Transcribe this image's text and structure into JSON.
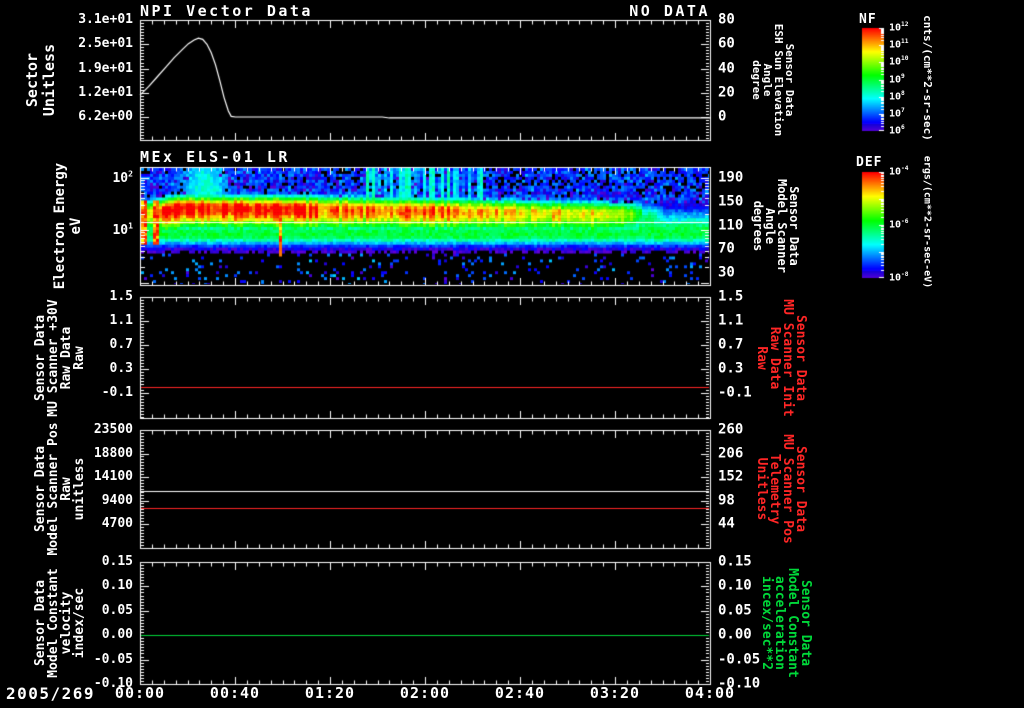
{
  "date_label": "2005/269",
  "time_ticks": [
    "00:00",
    "00:40",
    "01:20",
    "02:00",
    "02:40",
    "03:20",
    "04:00"
  ],
  "colors": {
    "background": "#000000",
    "axis": "#ffffff",
    "red": "#ff2626",
    "green": "#00d93a"
  },
  "panels": [
    {
      "id": "npi-vector",
      "title": "NPI Vector Data",
      "overlay": "NO DATA",
      "left_label_lines": [
        "Sector",
        "Unitless"
      ],
      "left_tick_labels": [
        "3.1e+01",
        "2.5e+01",
        "1.9e+01",
        "1.2e+01",
        "6.2e+00"
      ],
      "right_tick_labels": [
        "80",
        "60",
        "40",
        "20",
        "0"
      ],
      "right_label_lines": [
        "Sensor Data",
        "ESH Sun Elevation",
        "Angle",
        "degree"
      ],
      "right_label_color": "#ffffff"
    },
    {
      "id": "els-spectrogram",
      "title": "MEx ELS-01 LR",
      "left_label_lines": [
        "Electron Energy",
        "eV"
      ],
      "left_tick_labels": [
        "10^2",
        "10^1"
      ],
      "right_tick_labels": [
        "190",
        "150",
        "110",
        "70",
        "30"
      ],
      "right_label_lines": [
        "Sensor Data",
        "Model Scanner",
        "Angle",
        "degrees"
      ],
      "right_label_color": "#ffffff"
    },
    {
      "id": "mu-scanner-raw",
      "left_label_lines": [
        "Sensor Data",
        "MU Scanner +30V",
        "Raw Data",
        "Raw"
      ],
      "left_tick_labels": [
        "1.5",
        "1.1",
        "0.7",
        "0.3",
        "-0.1"
      ],
      "right_tick_labels": [
        "1.5",
        "1.1",
        "0.7",
        "0.3",
        "-0.1"
      ],
      "right_label_lines": [
        "Sensor Data",
        "MU Scanner Init",
        "Raw Data",
        "Raw"
      ],
      "right_label_color": "#ff2626"
    },
    {
      "id": "scanner-pos",
      "left_label_lines": [
        "Sensor Data",
        "Model Scanner Pos",
        "Raw",
        "unitless"
      ],
      "left_tick_labels": [
        "23500",
        "18800",
        "14100",
        "9400",
        "4700"
      ],
      "right_tick_labels": [
        "260",
        "206",
        "152",
        "98",
        "44"
      ],
      "right_label_lines": [
        "Sensor Data",
        "MU Scanner Pos",
        "Telemetry",
        "Unitless"
      ],
      "right_label_color": "#ff2626"
    },
    {
      "id": "model-constant",
      "left_label_lines": [
        "Sensor Data",
        "Model Constant",
        "velocity",
        "index/sec"
      ],
      "left_tick_labels": [
        "0.15",
        "0.10",
        "0.05",
        "0.00",
        "-0.05",
        "-0.10"
      ],
      "right_tick_labels": [
        "0.15",
        "0.10",
        "0.05",
        "0.00",
        "-0.05",
        "-0.10"
      ],
      "right_label_lines": [
        "Sensor Data",
        "Model Constant",
        "acceleration",
        "incex/sec**2"
      ],
      "right_label_color": "#00d93a"
    }
  ],
  "colorbars": [
    {
      "title": "NF",
      "tick_labels": [
        "10^12",
        "10^11",
        "10^10",
        "10^9",
        "10^8",
        "10^7",
        "10^6"
      ],
      "unit": "cnts/(cm**2-sr-sec)"
    },
    {
      "title": "DEF",
      "tick_labels": [
        "10^-4",
        "10^-6",
        "10^-8"
      ],
      "unit": "ergs/(cm**2-sr-sec-eV)"
    }
  ],
  "chart_data": [
    {
      "type": "line",
      "panel": "NPI Vector Data",
      "status": "NO DATA",
      "x_range_hours": [
        0,
        4
      ],
      "y_left_axis": {
        "label": "Sector Unitless",
        "ticks": [
          31,
          25,
          19,
          12,
          6.2
        ]
      },
      "y_right_axis": {
        "label": "Sensor Data ESH Sun Elevation Angle degree",
        "ticks": [
          80,
          60,
          40,
          20,
          0
        ]
      },
      "series": [
        {
          "name": "ESH Sun Elevation Angle (deg)",
          "color": "#ffffff",
          "points": [
            [
              0,
              18
            ],
            [
              0.06,
              25
            ],
            [
              0.12,
              33
            ],
            [
              0.18,
              41
            ],
            [
              0.24,
              49
            ],
            [
              0.3,
              56
            ],
            [
              0.34,
              60.5
            ],
            [
              0.38,
              63.5
            ],
            [
              0.41,
              65
            ],
            [
              0.44,
              64
            ],
            [
              0.47,
              60
            ],
            [
              0.5,
              53
            ],
            [
              0.53,
              43
            ],
            [
              0.56,
              30
            ],
            [
              0.59,
              16
            ],
            [
              0.62,
              5
            ],
            [
              0.64,
              0.5
            ],
            [
              0.67,
              0
            ],
            [
              1.7,
              0
            ],
            [
              1.75,
              -0.8
            ],
            [
              4,
              -0.8
            ]
          ]
        }
      ]
    },
    {
      "type": "heatmap",
      "panel": "MEx ELS-01 LR",
      "x_range_hours": [
        0,
        4
      ],
      "y_axis": {
        "label": "Electron Energy eV",
        "scale": "log",
        "range_eV": [
          0.9,
          160
        ],
        "decade_ticks": [
          100,
          10
        ]
      },
      "color_scales": [
        {
          "name": "NF",
          "range": [
            "1e6",
            "1e12"
          ],
          "unit": "cnts/(cm**2-sr-sec)"
        },
        {
          "name": "DEF",
          "range": [
            "1e-8",
            "1e-4"
          ],
          "unit": "ergs/(cm**2-sr-sec-eV)"
        }
      ],
      "white_reference_line_eV": 14,
      "features": [
        {
          "name": "main-hot-band",
          "energy_eV": [
            15,
            45
          ],
          "t_hours": [
            0.15,
            3.55
          ],
          "appearance": "red core 00:10-01:20 fading to orange/yellow then yellow-green, vanishes after 03:35"
        },
        {
          "name": "secondary-band",
          "energy_eV": [
            5,
            14
          ],
          "t_hours": [
            0,
            4
          ],
          "appearance": "continuous green band"
        },
        {
          "name": "startup-streaks",
          "energy_eV": [
            6,
            35
          ],
          "t_hours": [
            0,
            0.15
          ],
          "appearance": "red vertical streaks"
        },
        {
          "name": "thin-red-spike",
          "energy_eV": [
            3,
            30
          ],
          "t_hours": [
            0.97,
            1.0
          ],
          "appearance": "narrow orange-red vertical line"
        },
        {
          "name": "upper-plume",
          "energy_eV": [
            45,
            160
          ],
          "t_hours": [
            0.2,
            0.75
          ],
          "appearance": "green plume to top of range"
        },
        {
          "name": "upper-streaks",
          "energy_eV": [
            45,
            160
          ],
          "t_hours": [
            1.55,
            2.4
          ],
          "appearance": "cyan-green vertical streaks"
        },
        {
          "name": "late-blob",
          "energy_eV": [
            8,
            40
          ],
          "t_hours": [
            3.3,
            3.8
          ],
          "appearance": "green blob"
        },
        {
          "name": "background-upper",
          "energy_eV": [
            45,
            160
          ],
          "t_hours": [
            0,
            4
          ],
          "appearance": "blue speckle with black patches"
        },
        {
          "name": "background-lower",
          "energy_eV": [
            0.9,
            5
          ],
          "t_hours": [
            0,
            4
          ],
          "appearance": "black with sparse purple/blue speckles"
        }
      ]
    },
    {
      "type": "line",
      "panel": "MU Scanner +30V / Init",
      "y_axis": {
        "ticks": [
          1.5,
          1.1,
          0.7,
          0.3,
          -0.1
        ]
      },
      "series": [
        {
          "name": "MU Scanner Init Raw Data",
          "color": "#ff2626",
          "constant_value": 0.0
        }
      ]
    },
    {
      "type": "line",
      "panel": "Scanner Pos",
      "y_left_axis": {
        "label": "Model Scanner Pos Raw unitless",
        "ticks": [
          23500,
          18800,
          14100,
          9400,
          4700
        ]
      },
      "y_right_axis": {
        "label": "MU Scanner Pos Telemetry Unitless",
        "ticks": [
          260,
          206,
          152,
          98,
          44
        ]
      },
      "series": [
        {
          "name": "Model Scanner Pos Raw",
          "color": "#ffffff",
          "constant_value": 11300
        },
        {
          "name": "MU Scanner Pos Telemetry",
          "color": "#ff2626",
          "constant_value": 8000
        }
      ]
    },
    {
      "type": "line",
      "panel": "Model Constant velocity / acceleration",
      "y_axis": {
        "ticks": [
          0.15,
          0.1,
          0.05,
          0.0,
          -0.05,
          -0.1
        ]
      },
      "series": [
        {
          "name": "Model Constant velocity (index/sec)",
          "color": "#00d93a",
          "constant_value": 0.0
        }
      ]
    }
  ]
}
